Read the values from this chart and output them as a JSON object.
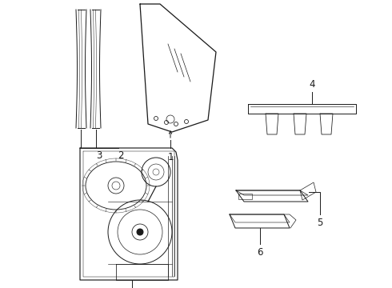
{
  "background_color": "#ffffff",
  "line_color": "#1a1a1a",
  "line_width": 0.7,
  "label_fontsize": 8.5,
  "fig_w": 4.9,
  "fig_h": 3.6,
  "dpi": 100
}
